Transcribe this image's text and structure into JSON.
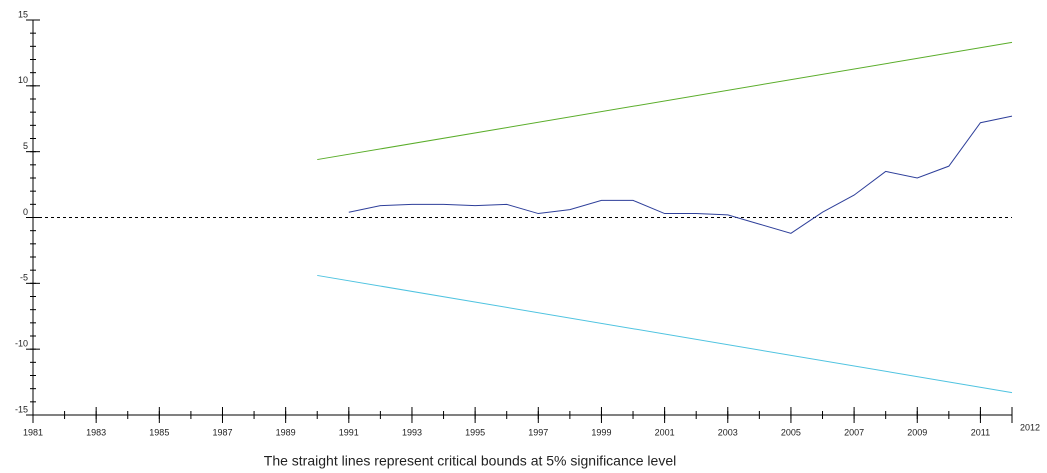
{
  "chart_data": {
    "type": "line",
    "caption": "The straight lines represent critical bounds at 5% significance level",
    "series": [
      {
        "color": "#2e3f9a",
        "x": [
          1991,
          1992,
          1993,
          1994,
          1995,
          1996,
          1997,
          1998,
          1999,
          2000,
          2001,
          2002,
          2003,
          2004,
          2005,
          2006,
          2007,
          2008,
          2009,
          2010,
          2011,
          2012
        ],
        "values": [
          0.4,
          0.9,
          1.0,
          1.0,
          0.9,
          1.0,
          0.3,
          0.6,
          1.3,
          1.3,
          0.3,
          0.3,
          0.2,
          -0.5,
          -1.2,
          0.4,
          1.7,
          3.5,
          3.0,
          3.9,
          7.2,
          7.7
        ]
      },
      {
        "color": "#5aad2a",
        "x": [
          1990,
          2012
        ],
        "values": [
          4.4,
          13.3
        ]
      },
      {
        "color": "#4fc3e0",
        "x": [
          1990,
          2012
        ],
        "values": [
          -4.4,
          -13.3
        ]
      }
    ],
    "hline": 0,
    "xlim": [
      1981,
      2012
    ],
    "xticks": [
      1981,
      1983,
      1985,
      1987,
      1989,
      1991,
      1993,
      1995,
      1997,
      1999,
      2001,
      2003,
      2005,
      2007,
      2009,
      2011,
      2012
    ],
    "ylim": [
      -15,
      15
    ],
    "yticks": [
      -15,
      -10,
      -5,
      0,
      5,
      10,
      15
    ]
  }
}
